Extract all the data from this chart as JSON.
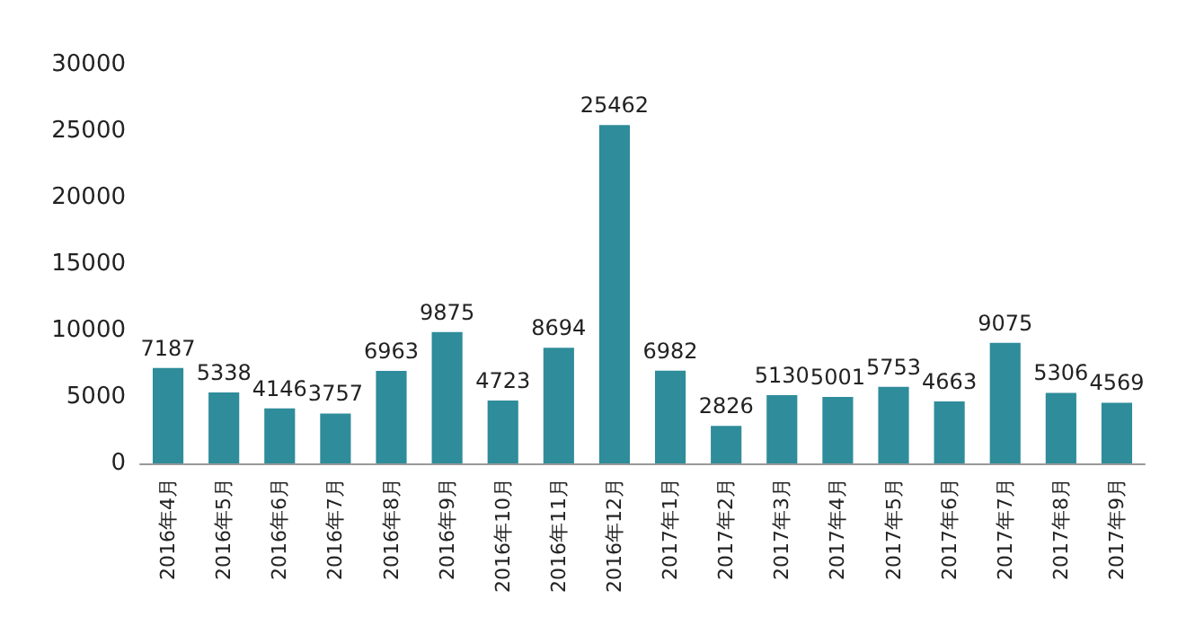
{
  "chart_data": {
    "type": "bar",
    "categories": [
      "2016年4月",
      "2016年5月",
      "2016年6月",
      "2016年7月",
      "2016年8月",
      "2016年9月",
      "2016年10月",
      "2016年11月",
      "2016年12月",
      "2017年1月",
      "2017年2月",
      "2017年3月",
      "2017年4月",
      "2017年5月",
      "2017年6月",
      "2017年7月",
      "2017年8月",
      "2017年9月"
    ],
    "values": [
      7187,
      5338,
      4146,
      3757,
      6963,
      9875,
      4723,
      8694,
      25462,
      6982,
      2826,
      5130,
      5001,
      5753,
      4663,
      9075,
      5306,
      4569
    ],
    "color": "#2f8c9a",
    "ylim": [
      0,
      30000
    ],
    "yticks": [
      0,
      5000,
      10000,
      15000,
      20000,
      25000,
      30000
    ],
    "grid": false,
    "data_labels": true
  }
}
